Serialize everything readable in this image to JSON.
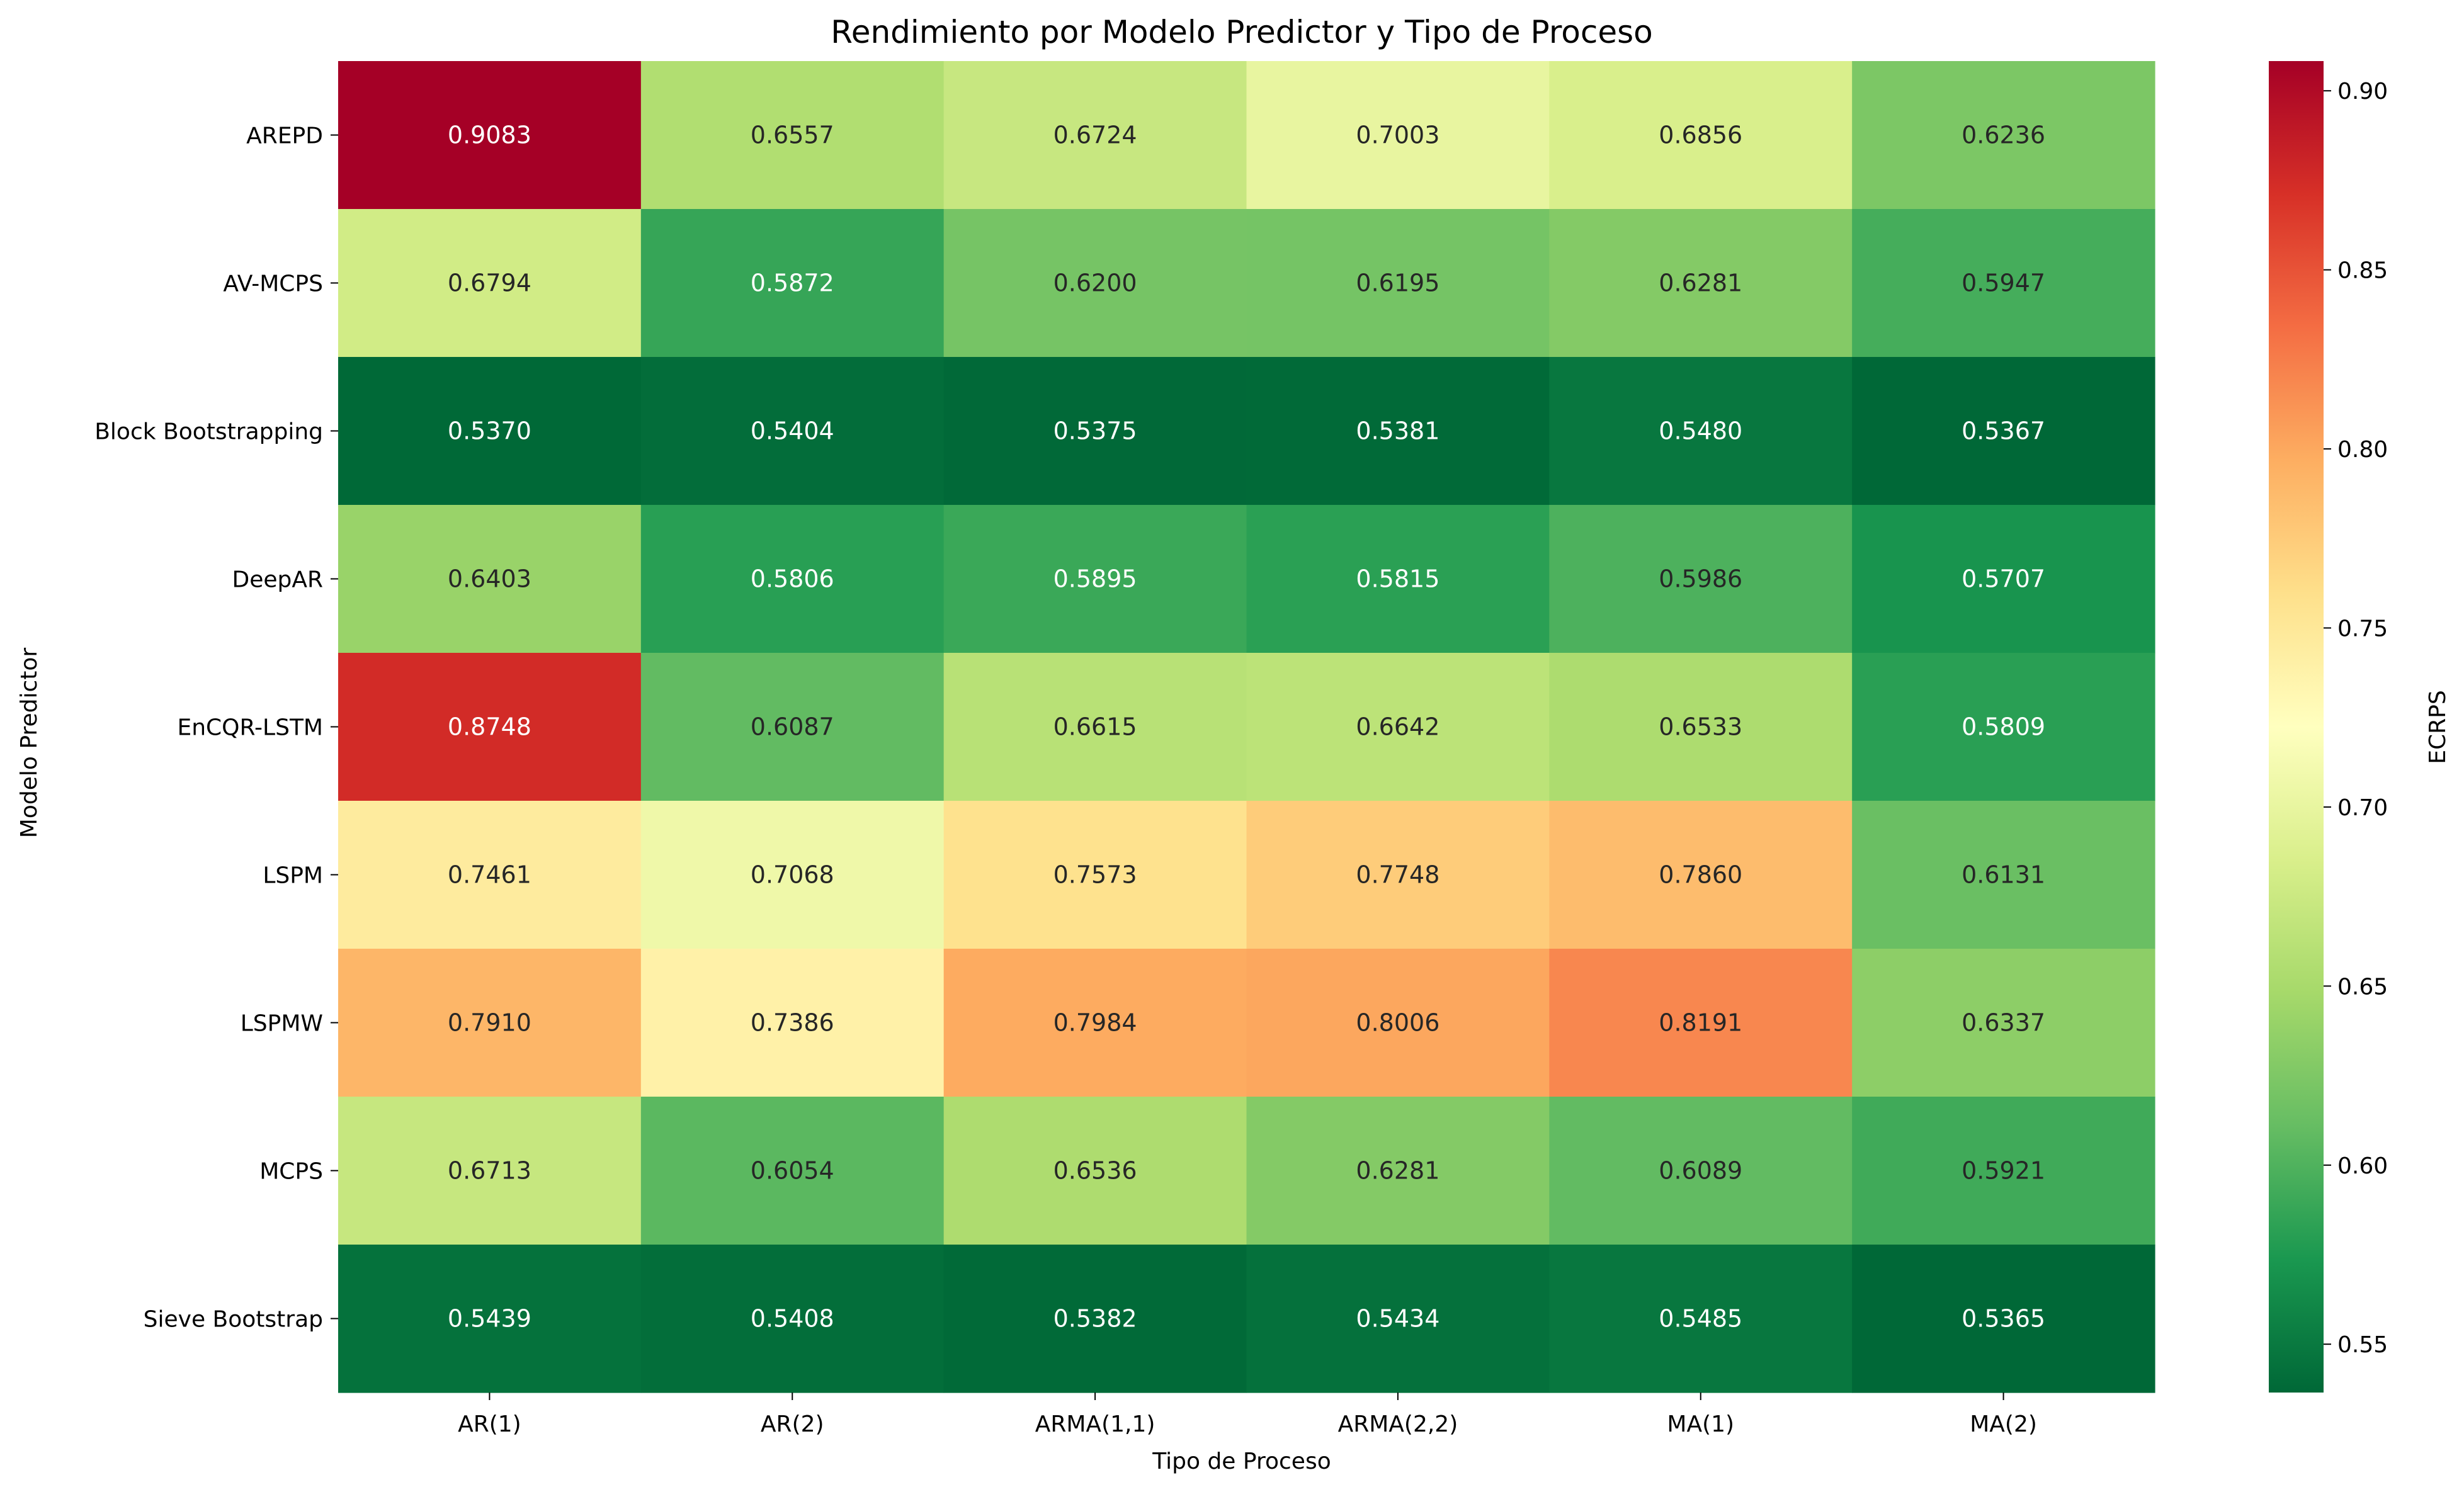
{
  "chart_data": {
    "type": "heatmap",
    "title": "Rendimiento por Modelo Predictor y Tipo de Proceso",
    "xlabel": "Tipo de Proceso",
    "ylabel": "Modelo Predictor",
    "x_categories": [
      "AR(1)",
      "AR(2)",
      "ARMA(1,1)",
      "ARMA(2,2)",
      "MA(1)",
      "MA(2)"
    ],
    "y_categories": [
      "AREPD",
      "AV-MCPS",
      "Block Bootstrapping",
      "DeepAR",
      "EnCQR-LSTM",
      "LSPM",
      "LSPMW",
      "MCPS",
      "Sieve Bootstrap"
    ],
    "values": [
      [
        0.9083,
        0.6557,
        0.6724,
        0.7003,
        0.6856,
        0.6236
      ],
      [
        0.6794,
        0.5872,
        0.62,
        0.6195,
        0.6281,
        0.5947
      ],
      [
        0.537,
        0.5404,
        0.5375,
        0.5381,
        0.548,
        0.5367
      ],
      [
        0.6403,
        0.5806,
        0.5895,
        0.5815,
        0.5986,
        0.5707
      ],
      [
        0.8748,
        0.6087,
        0.6615,
        0.6642,
        0.6533,
        0.5809
      ],
      [
        0.7461,
        0.7068,
        0.7573,
        0.7748,
        0.786,
        0.6131
      ],
      [
        0.791,
        0.7386,
        0.7984,
        0.8006,
        0.8191,
        0.6337
      ],
      [
        0.6713,
        0.6054,
        0.6536,
        0.6281,
        0.6089,
        0.5921
      ],
      [
        0.5439,
        0.5408,
        0.5382,
        0.5434,
        0.5485,
        0.5365
      ]
    ],
    "value_format_decimals": 4,
    "colormap": "RdYlGn_r",
    "colorbar": {
      "label": "ECRPS",
      "range": [
        0.5365,
        0.9083
      ],
      "ticks": [
        0.55,
        0.6,
        0.65,
        0.7,
        0.75,
        0.8,
        0.85,
        0.9
      ],
      "tick_labels": [
        "0.55",
        "0.60",
        "0.65",
        "0.70",
        "0.75",
        "0.80",
        "0.85",
        "0.90"
      ]
    },
    "colormap_stops": [
      [
        0.0,
        "#006837"
      ],
      [
        0.1,
        "#1a9850"
      ],
      [
        0.2,
        "#66bd63"
      ],
      [
        0.3,
        "#a6d96a"
      ],
      [
        0.4,
        "#d9ef8b"
      ],
      [
        0.5,
        "#ffffbf"
      ],
      [
        0.6,
        "#fee08b"
      ],
      [
        0.7,
        "#fdae61"
      ],
      [
        0.8,
        "#f46d43"
      ],
      [
        0.9,
        "#d73027"
      ],
      [
        1.0,
        "#a50026"
      ]
    ],
    "grid": false
  }
}
